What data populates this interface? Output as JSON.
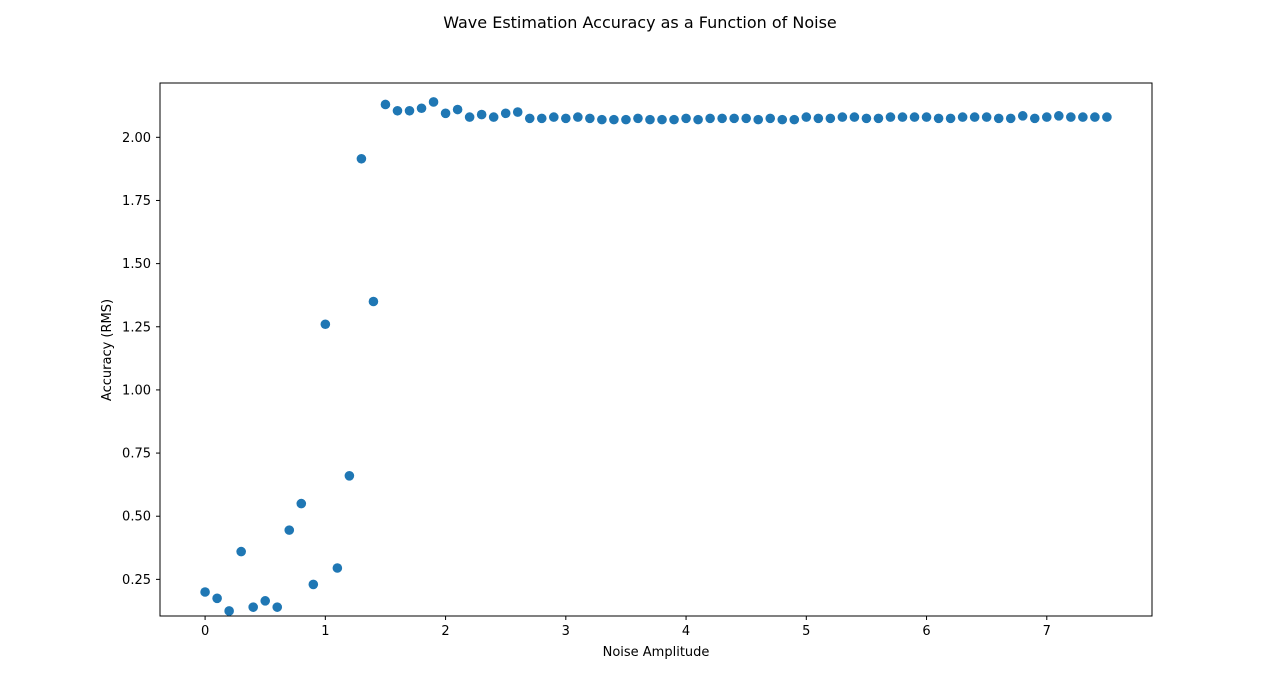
{
  "chart_data": {
    "type": "scatter",
    "title": "Wave Estimation Accuracy as a Function of Noise",
    "xlabel": "Noise Amplitude",
    "ylabel": "Accuracy (RMS)",
    "xlim": [
      -0.375,
      7.875
    ],
    "ylim": [
      0.105,
      2.215
    ],
    "xticks": [
      0,
      1,
      2,
      3,
      4,
      5,
      6,
      7
    ],
    "xtick_labels": [
      "0",
      "1",
      "2",
      "3",
      "4",
      "5",
      "6",
      "7"
    ],
    "yticks": [
      0.25,
      0.5,
      0.75,
      1.0,
      1.25,
      1.5,
      1.75,
      2.0
    ],
    "ytick_labels": [
      "0.25",
      "0.50",
      "0.75",
      "1.00",
      "1.25",
      "1.50",
      "1.75",
      "2.00"
    ],
    "grid": false,
    "marker_color": "#1f77b4",
    "x": [
      0.0,
      0.1,
      0.2,
      0.3,
      0.4,
      0.5,
      0.6,
      0.7,
      0.8,
      0.9,
      1.0,
      1.1,
      1.2,
      1.3,
      1.4,
      1.5,
      1.6,
      1.7,
      1.8,
      1.9,
      2.0,
      2.1,
      2.2,
      2.3,
      2.4,
      2.5,
      2.6,
      2.7,
      2.8,
      2.9,
      3.0,
      3.1,
      3.2,
      3.3,
      3.4,
      3.5,
      3.6,
      3.7,
      3.8,
      3.9,
      4.0,
      4.1,
      4.2,
      4.3,
      4.4,
      4.5,
      4.6,
      4.7,
      4.8,
      4.9,
      5.0,
      5.1,
      5.2,
      5.3,
      5.4,
      5.5,
      5.6,
      5.7,
      5.8,
      5.9,
      6.0,
      6.1,
      6.2,
      6.3,
      6.4,
      6.5,
      6.6,
      6.7,
      6.8,
      6.9,
      7.0,
      7.1,
      7.2,
      7.3,
      7.4,
      7.5
    ],
    "y": [
      0.2,
      0.175,
      0.125,
      0.36,
      0.14,
      0.165,
      0.14,
      0.445,
      0.55,
      0.23,
      1.26,
      0.295,
      0.66,
      1.915,
      1.35,
      2.13,
      2.105,
      2.105,
      2.115,
      2.14,
      2.095,
      2.11,
      2.08,
      2.09,
      2.08,
      2.095,
      2.1,
      2.075,
      2.075,
      2.08,
      2.075,
      2.08,
      2.075,
      2.07,
      2.07,
      2.07,
      2.075,
      2.07,
      2.07,
      2.07,
      2.075,
      2.07,
      2.075,
      2.075,
      2.075,
      2.075,
      2.07,
      2.075,
      2.07,
      2.07,
      2.08,
      2.075,
      2.075,
      2.08,
      2.08,
      2.075,
      2.075,
      2.08,
      2.08,
      2.08,
      2.08,
      2.075,
      2.075,
      2.08,
      2.08,
      2.08,
      2.075,
      2.075,
      2.085,
      2.075,
      2.08,
      2.085,
      2.08,
      2.08,
      2.08,
      2.08
    ]
  }
}
